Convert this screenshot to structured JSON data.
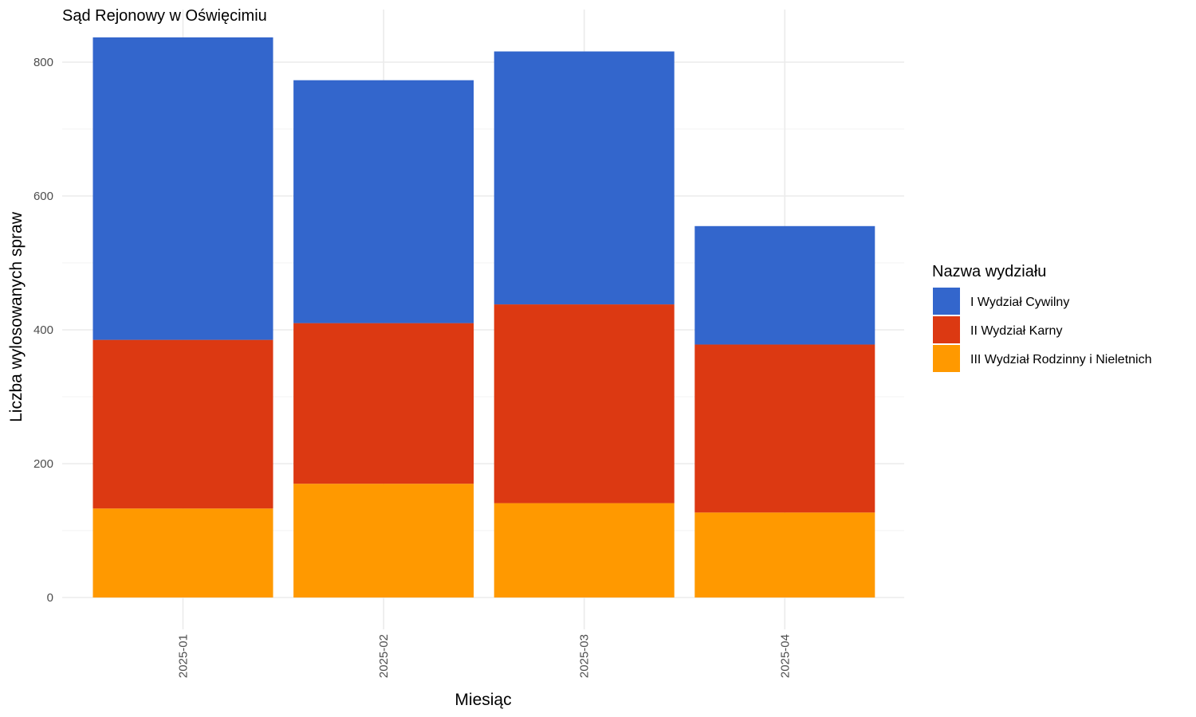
{
  "chart_data": {
    "type": "bar",
    "stacked": true,
    "title": "Sąd Rejonowy w Oświęcimiu",
    "xlabel": "Miesiąc",
    "ylabel": "Liczba wylosowanych spraw",
    "categories": [
      "2025-01",
      "2025-02",
      "2025-03",
      "2025-04"
    ],
    "ylim": [
      0,
      850
    ],
    "yticks": [
      0,
      200,
      400,
      600,
      800
    ],
    "ytick_labels": [
      "0",
      "200",
      "400",
      "600",
      "800"
    ],
    "grid": true,
    "legend": {
      "title": "Nazwa wydziału",
      "position": "right"
    },
    "series": [
      {
        "name": "III Wydział Rodzinny i Nieletnich",
        "color": "#FF9900",
        "values": [
          133,
          170,
          141,
          127
        ]
      },
      {
        "name": "II Wydział Karny",
        "color": "#DC3912",
        "values": [
          252,
          240,
          297,
          251
        ]
      },
      {
        "name": "I Wydział Cywilny",
        "color": "#3366CC",
        "values": [
          452,
          363,
          378,
          177
        ]
      }
    ],
    "legend_order": [
      "I Wydział Cywilny",
      "II Wydział Karny",
      "III Wydział Rodzinny i Nieletnich"
    ]
  }
}
